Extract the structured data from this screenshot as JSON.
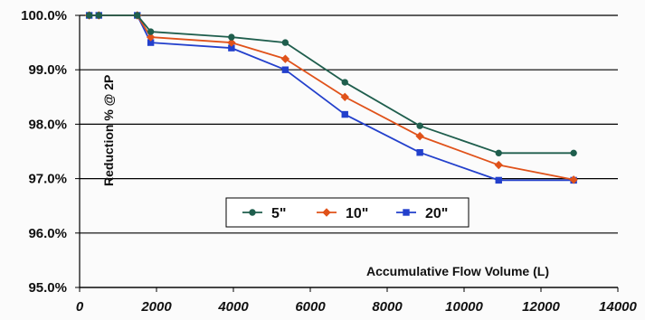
{
  "chart_data": {
    "type": "line",
    "title": "",
    "xlabel": "Accumulative Flow Volume (L)",
    "ylabel": "Reduction % @ 2P",
    "xlim": [
      0,
      14000
    ],
    "ylim": [
      95.0,
      100.0
    ],
    "x_ticks": [
      0,
      2000,
      4000,
      6000,
      8000,
      10000,
      12000,
      14000
    ],
    "x_tick_labels": [
      "0",
      "2000",
      "4000",
      "6000",
      "8000",
      "10000",
      "12000",
      "14000"
    ],
    "y_ticks": [
      95.0,
      96.0,
      97.0,
      98.0,
      99.0,
      100.0
    ],
    "y_tick_labels": [
      "95.0%",
      "96.0%",
      "97.0%",
      "98.0%",
      "99.0%",
      "100.0%"
    ],
    "grid": "horizontal",
    "legend_position": "center",
    "series": [
      {
        "name": "5\"",
        "color": "#1f5e4d",
        "marker": "circle",
        "points": [
          {
            "x": 250,
            "y": 100.0
          },
          {
            "x": 500,
            "y": 100.0
          },
          {
            "x": 1500,
            "y": 100.0
          },
          {
            "x": 1850,
            "y": 99.7
          },
          {
            "x": 3950,
            "y": 99.6
          },
          {
            "x": 5350,
            "y": 99.5
          },
          {
            "x": 6900,
            "y": 98.77
          },
          {
            "x": 8850,
            "y": 97.97
          },
          {
            "x": 10900,
            "y": 97.47
          },
          {
            "x": 12850,
            "y": 97.47
          }
        ]
      },
      {
        "name": "10\"",
        "color": "#e0521a",
        "marker": "diamond",
        "points": [
          {
            "x": 250,
            "y": 100.0
          },
          {
            "x": 500,
            "y": 100.0
          },
          {
            "x": 1500,
            "y": 100.0
          },
          {
            "x": 1850,
            "y": 99.6
          },
          {
            "x": 3950,
            "y": 99.5
          },
          {
            "x": 5350,
            "y": 99.2
          },
          {
            "x": 6900,
            "y": 98.5
          },
          {
            "x": 8850,
            "y": 97.78
          },
          {
            "x": 10900,
            "y": 97.25
          },
          {
            "x": 12850,
            "y": 96.98
          }
        ]
      },
      {
        "name": "20\"",
        "color": "#2340cc",
        "marker": "square",
        "points": [
          {
            "x": 250,
            "y": 100.0
          },
          {
            "x": 500,
            "y": 100.0
          },
          {
            "x": 1500,
            "y": 100.0
          },
          {
            "x": 1850,
            "y": 99.5
          },
          {
            "x": 3950,
            "y": 99.4
          },
          {
            "x": 5350,
            "y": 99.0
          },
          {
            "x": 6900,
            "y": 98.18
          },
          {
            "x": 8850,
            "y": 97.48
          },
          {
            "x": 10900,
            "y": 96.97
          },
          {
            "x": 12850,
            "y": 96.97
          }
        ]
      }
    ]
  }
}
